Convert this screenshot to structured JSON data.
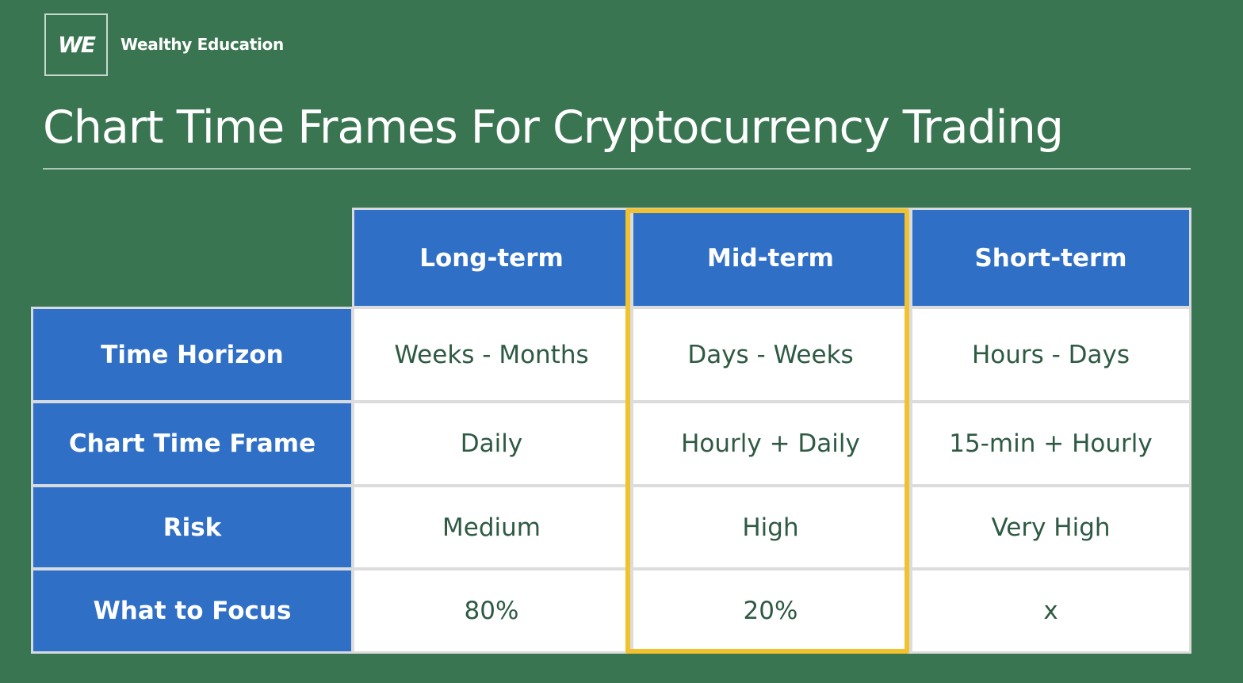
{
  "brand": {
    "logo_text": "WE",
    "name": "Wealthy Education"
  },
  "title": "Chart Time Frames For Cryptocurrency Trading",
  "table": {
    "columns": [
      "Long-term",
      "Mid-term",
      "Short-term"
    ],
    "highlighted_column": "Mid-term",
    "rows": [
      {
        "label": "Time Horizon",
        "values": [
          "Weeks - Months",
          "Days - Weeks",
          "Hours - Days"
        ]
      },
      {
        "label": "Chart Time Frame",
        "values": [
          "Daily",
          "Hourly + Daily",
          "15-min + Hourly"
        ]
      },
      {
        "label": "Risk",
        "values": [
          "Medium",
          "High",
          "Very High"
        ]
      },
      {
        "label": "What to Focus",
        "values": [
          "80%",
          "20%",
          "x"
        ]
      }
    ]
  },
  "colors": {
    "background": "#3a7551",
    "header_fill": "#2f6fc6",
    "highlight_border": "#f2c12e",
    "value_text": "#2e5a43"
  }
}
